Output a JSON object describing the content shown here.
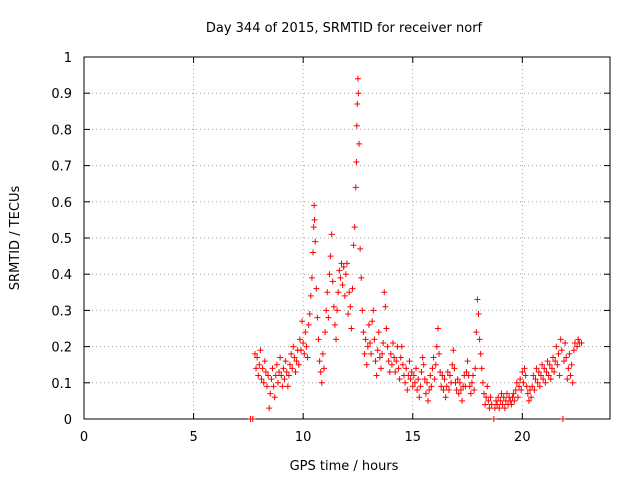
{
  "chart_data": {
    "type": "scatter",
    "title": "Day 344 of 2015, SRMTID for receiver norf",
    "xlabel": "GPS time / hours",
    "ylabel": "SRMTID / TECUs",
    "xlim": [
      0,
      24
    ],
    "ylim": [
      0,
      1
    ],
    "xticks": [
      "0",
      "5",
      "10",
      "15",
      "20"
    ],
    "yticks": [
      "0",
      "0.1",
      "0.2",
      "0.3",
      "0.4",
      "0.5",
      "0.6",
      "0.7",
      "0.8",
      "0.9",
      "1"
    ],
    "grid": true,
    "marker": "+",
    "color": "#ff0000",
    "series": [
      {
        "name": "norf",
        "points": [
          [
            7.6,
            0.0
          ],
          [
            7.7,
            0.0
          ],
          [
            7.8,
            0.18
          ],
          [
            7.85,
            0.14
          ],
          [
            7.9,
            0.17
          ],
          [
            7.95,
            0.12
          ],
          [
            8.0,
            0.15
          ],
          [
            8.05,
            0.19
          ],
          [
            8.1,
            0.11
          ],
          [
            8.15,
            0.14
          ],
          [
            8.2,
            0.1
          ],
          [
            8.25,
            0.16
          ],
          [
            8.3,
            0.13
          ],
          [
            8.35,
            0.09
          ],
          [
            8.4,
            0.12
          ],
          [
            8.45,
            0.03
          ],
          [
            8.5,
            0.07
          ],
          [
            8.55,
            0.11
          ],
          [
            8.6,
            0.14
          ],
          [
            8.65,
            0.09
          ],
          [
            8.7,
            0.06
          ],
          [
            8.75,
            0.12
          ],
          [
            8.8,
            0.15
          ],
          [
            8.85,
            0.1
          ],
          [
            8.9,
            0.13
          ],
          [
            8.95,
            0.17
          ],
          [
            9.0,
            0.12
          ],
          [
            9.05,
            0.09
          ],
          [
            9.1,
            0.14
          ],
          [
            9.15,
            0.11
          ],
          [
            9.2,
            0.16
          ],
          [
            9.25,
            0.13
          ],
          [
            9.3,
            0.09
          ],
          [
            9.35,
            0.12
          ],
          [
            9.4,
            0.15
          ],
          [
            9.45,
            0.18
          ],
          [
            9.5,
            0.14
          ],
          [
            9.55,
            0.2
          ],
          [
            9.6,
            0.17
          ],
          [
            9.65,
            0.13
          ],
          [
            9.7,
            0.16
          ],
          [
            9.75,
            0.19
          ],
          [
            9.8,
            0.15
          ],
          [
            9.85,
            0.22
          ],
          [
            9.9,
            0.19
          ],
          [
            9.95,
            0.27
          ],
          [
            10.0,
            0.21
          ],
          [
            10.05,
            0.18
          ],
          [
            10.1,
            0.24
          ],
          [
            10.15,
            0.2
          ],
          [
            10.2,
            0.17
          ],
          [
            10.25,
            0.26
          ],
          [
            10.3,
            0.29
          ],
          [
            10.35,
            0.34
          ],
          [
            10.4,
            0.39
          ],
          [
            10.45,
            0.46
          ],
          [
            10.48,
            0.53
          ],
          [
            10.5,
            0.59
          ],
          [
            10.52,
            0.55
          ],
          [
            10.55,
            0.49
          ],
          [
            10.6,
            0.36
          ],
          [
            10.65,
            0.28
          ],
          [
            10.7,
            0.22
          ],
          [
            10.75,
            0.16
          ],
          [
            10.8,
            0.13
          ],
          [
            10.85,
            0.1
          ],
          [
            10.9,
            0.18
          ],
          [
            10.95,
            0.14
          ],
          [
            11.0,
            0.24
          ],
          [
            11.05,
            0.3
          ],
          [
            11.1,
            0.35
          ],
          [
            11.15,
            0.28
          ],
          [
            11.2,
            0.4
          ],
          [
            11.25,
            0.45
          ],
          [
            11.3,
            0.51
          ],
          [
            11.35,
            0.38
          ],
          [
            11.4,
            0.31
          ],
          [
            11.45,
            0.26
          ],
          [
            11.5,
            0.22
          ],
          [
            11.55,
            0.3
          ],
          [
            11.6,
            0.35
          ],
          [
            11.65,
            0.41
          ],
          [
            11.7,
            0.39
          ],
          [
            11.75,
            0.43
          ],
          [
            11.8,
            0.37
          ],
          [
            11.85,
            0.42
          ],
          [
            11.9,
            0.34
          ],
          [
            11.95,
            0.4
          ],
          [
            12.0,
            0.43
          ],
          [
            12.05,
            0.29
          ],
          [
            12.1,
            0.35
          ],
          [
            12.15,
            0.31
          ],
          [
            12.2,
            0.25
          ],
          [
            12.25,
            0.36
          ],
          [
            12.3,
            0.48
          ],
          [
            12.35,
            0.53
          ],
          [
            12.4,
            0.64
          ],
          [
            12.43,
            0.71
          ],
          [
            12.45,
            0.81
          ],
          [
            12.47,
            0.87
          ],
          [
            12.5,
            0.94
          ],
          [
            12.52,
            0.9
          ],
          [
            12.55,
            0.76
          ],
          [
            12.6,
            0.47
          ],
          [
            12.65,
            0.39
          ],
          [
            12.7,
            0.3
          ],
          [
            12.75,
            0.24
          ],
          [
            12.8,
            0.18
          ],
          [
            12.85,
            0.22
          ],
          [
            12.9,
            0.15
          ],
          [
            12.95,
            0.2
          ],
          [
            13.0,
            0.26
          ],
          [
            13.05,
            0.21
          ],
          [
            13.1,
            0.18
          ],
          [
            13.15,
            0.27
          ],
          [
            13.2,
            0.3
          ],
          [
            13.25,
            0.22
          ],
          [
            13.3,
            0.16
          ],
          [
            13.35,
            0.12
          ],
          [
            13.4,
            0.19
          ],
          [
            13.45,
            0.24
          ],
          [
            13.5,
            0.17
          ],
          [
            13.55,
            0.14
          ],
          [
            13.6,
            0.18
          ],
          [
            13.65,
            0.21
          ],
          [
            13.7,
            0.35
          ],
          [
            13.75,
            0.31
          ],
          [
            13.8,
            0.25
          ],
          [
            13.85,
            0.2
          ],
          [
            13.9,
            0.16
          ],
          [
            13.95,
            0.13
          ],
          [
            14.0,
            0.18
          ],
          [
            14.05,
            0.15
          ],
          [
            14.1,
            0.21
          ],
          [
            14.15,
            0.17
          ],
          [
            14.2,
            0.13
          ],
          [
            14.25,
            0.16
          ],
          [
            14.3,
            0.2
          ],
          [
            14.35,
            0.14
          ],
          [
            14.4,
            0.11
          ],
          [
            14.45,
            0.17
          ],
          [
            14.5,
            0.2
          ],
          [
            14.55,
            0.15
          ],
          [
            14.6,
            0.12
          ],
          [
            14.65,
            0.1
          ],
          [
            14.7,
            0.14
          ],
          [
            14.75,
            0.08
          ],
          [
            14.8,
            0.12
          ],
          [
            14.85,
            0.16
          ],
          [
            14.9,
            0.11
          ],
          [
            14.95,
            0.13
          ],
          [
            15.0,
            0.09
          ],
          [
            15.05,
            0.12
          ],
          [
            15.1,
            0.1
          ],
          [
            15.15,
            0.14
          ],
          [
            15.2,
            0.08
          ],
          [
            15.25,
            0.11
          ],
          [
            15.3,
            0.06
          ],
          [
            15.35,
            0.09
          ],
          [
            15.4,
            0.13
          ],
          [
            15.45,
            0.17
          ],
          [
            15.5,
            0.15
          ],
          [
            15.55,
            0.11
          ],
          [
            15.6,
            0.07
          ],
          [
            15.65,
            0.1
          ],
          [
            15.7,
            0.05
          ],
          [
            15.75,
            0.08
          ],
          [
            15.8,
            0.12
          ],
          [
            15.85,
            0.09
          ],
          [
            15.9,
            0.14
          ],
          [
            15.95,
            0.17
          ],
          [
            16.0,
            0.11
          ],
          [
            16.05,
            0.15
          ],
          [
            16.1,
            0.2
          ],
          [
            16.15,
            0.25
          ],
          [
            16.2,
            0.18
          ],
          [
            16.25,
            0.13
          ],
          [
            16.3,
            0.09
          ],
          [
            16.35,
            0.12
          ],
          [
            16.4,
            0.08
          ],
          [
            16.45,
            0.11
          ],
          [
            16.5,
            0.06
          ],
          [
            16.55,
            0.09
          ],
          [
            16.6,
            0.13
          ],
          [
            16.65,
            0.08
          ],
          [
            16.7,
            0.12
          ],
          [
            16.75,
            0.1
          ],
          [
            16.8,
            0.15
          ],
          [
            16.85,
            0.19
          ],
          [
            16.9,
            0.14
          ],
          [
            16.95,
            0.1
          ],
          [
            17.0,
            0.08
          ],
          [
            17.05,
            0.11
          ],
          [
            17.1,
            0.07
          ],
          [
            17.15,
            0.1
          ],
          [
            17.2,
            0.08
          ],
          [
            17.25,
            0.05
          ],
          [
            17.3,
            0.09
          ],
          [
            17.35,
            0.12
          ],
          [
            17.4,
            0.09
          ],
          [
            17.45,
            0.13
          ],
          [
            17.5,
            0.16
          ],
          [
            17.55,
            0.12
          ],
          [
            17.6,
            0.09
          ],
          [
            17.65,
            0.07
          ],
          [
            17.7,
            0.1
          ],
          [
            17.75,
            0.12
          ],
          [
            17.8,
            0.08
          ],
          [
            17.85,
            0.14
          ],
          [
            17.9,
            0.24
          ],
          [
            17.95,
            0.33
          ],
          [
            18.0,
            0.29
          ],
          [
            18.05,
            0.22
          ],
          [
            18.1,
            0.18
          ],
          [
            18.15,
            0.14
          ],
          [
            18.2,
            0.1
          ],
          [
            18.25,
            0.07
          ],
          [
            18.3,
            0.04
          ],
          [
            18.35,
            0.06
          ],
          [
            18.4,
            0.09
          ],
          [
            18.45,
            0.05
          ],
          [
            18.5,
            0.03
          ],
          [
            18.55,
            0.06
          ],
          [
            18.6,
            0.04
          ],
          [
            18.7,
            0.0
          ],
          [
            18.75,
            0.03
          ],
          [
            18.8,
            0.05
          ],
          [
            18.85,
            0.04
          ],
          [
            18.9,
            0.06
          ],
          [
            18.95,
            0.03
          ],
          [
            19.0,
            0.05
          ],
          [
            19.05,
            0.07
          ],
          [
            19.1,
            0.04
          ],
          [
            19.15,
            0.06
          ],
          [
            19.2,
            0.03
          ],
          [
            19.25,
            0.05
          ],
          [
            19.3,
            0.07
          ],
          [
            19.35,
            0.04
          ],
          [
            19.4,
            0.06
          ],
          [
            19.45,
            0.05
          ],
          [
            19.5,
            0.04
          ],
          [
            19.55,
            0.06
          ],
          [
            19.6,
            0.07
          ],
          [
            19.65,
            0.05
          ],
          [
            19.7,
            0.08
          ],
          [
            19.75,
            0.1
          ],
          [
            19.8,
            0.06
          ],
          [
            19.85,
            0.09
          ],
          [
            19.9,
            0.11
          ],
          [
            19.95,
            0.08
          ],
          [
            20.0,
            0.13
          ],
          [
            20.05,
            0.1
          ],
          [
            20.1,
            0.14
          ],
          [
            20.15,
            0.12
          ],
          [
            20.2,
            0.09
          ],
          [
            20.25,
            0.07
          ],
          [
            20.3,
            0.05
          ],
          [
            20.35,
            0.08
          ],
          [
            20.4,
            0.06
          ],
          [
            20.45,
            0.09
          ],
          [
            20.5,
            0.12
          ],
          [
            20.55,
            0.08
          ],
          [
            20.6,
            0.11
          ],
          [
            20.65,
            0.14
          ],
          [
            20.7,
            0.1
          ],
          [
            20.75,
            0.13
          ],
          [
            20.8,
            0.09
          ],
          [
            20.85,
            0.12
          ],
          [
            20.9,
            0.15
          ],
          [
            20.95,
            0.11
          ],
          [
            21.0,
            0.14
          ],
          [
            21.05,
            0.1
          ],
          [
            21.1,
            0.13
          ],
          [
            21.15,
            0.16
          ],
          [
            21.2,
            0.12
          ],
          [
            21.25,
            0.15
          ],
          [
            21.3,
            0.11
          ],
          [
            21.35,
            0.14
          ],
          [
            21.4,
            0.17
          ],
          [
            21.45,
            0.13
          ],
          [
            21.5,
            0.16
          ],
          [
            21.55,
            0.2
          ],
          [
            21.6,
            0.15
          ],
          [
            21.65,
            0.18
          ],
          [
            21.7,
            0.12
          ],
          [
            21.75,
            0.22
          ],
          [
            21.8,
            0.19
          ],
          [
            21.85,
            0.0
          ],
          [
            21.9,
            0.16
          ],
          [
            21.95,
            0.21
          ],
          [
            22.0,
            0.17
          ],
          [
            22.05,
            0.11
          ],
          [
            22.1,
            0.14
          ],
          [
            22.15,
            0.18
          ],
          [
            22.2,
            0.12
          ],
          [
            22.25,
            0.15
          ],
          [
            22.3,
            0.1
          ],
          [
            22.35,
            0.19
          ],
          [
            22.4,
            0.21
          ],
          [
            22.5,
            0.2
          ],
          [
            22.55,
            0.22
          ],
          [
            22.6,
            0.21
          ],
          [
            22.7,
            0.21
          ]
        ]
      }
    ]
  }
}
